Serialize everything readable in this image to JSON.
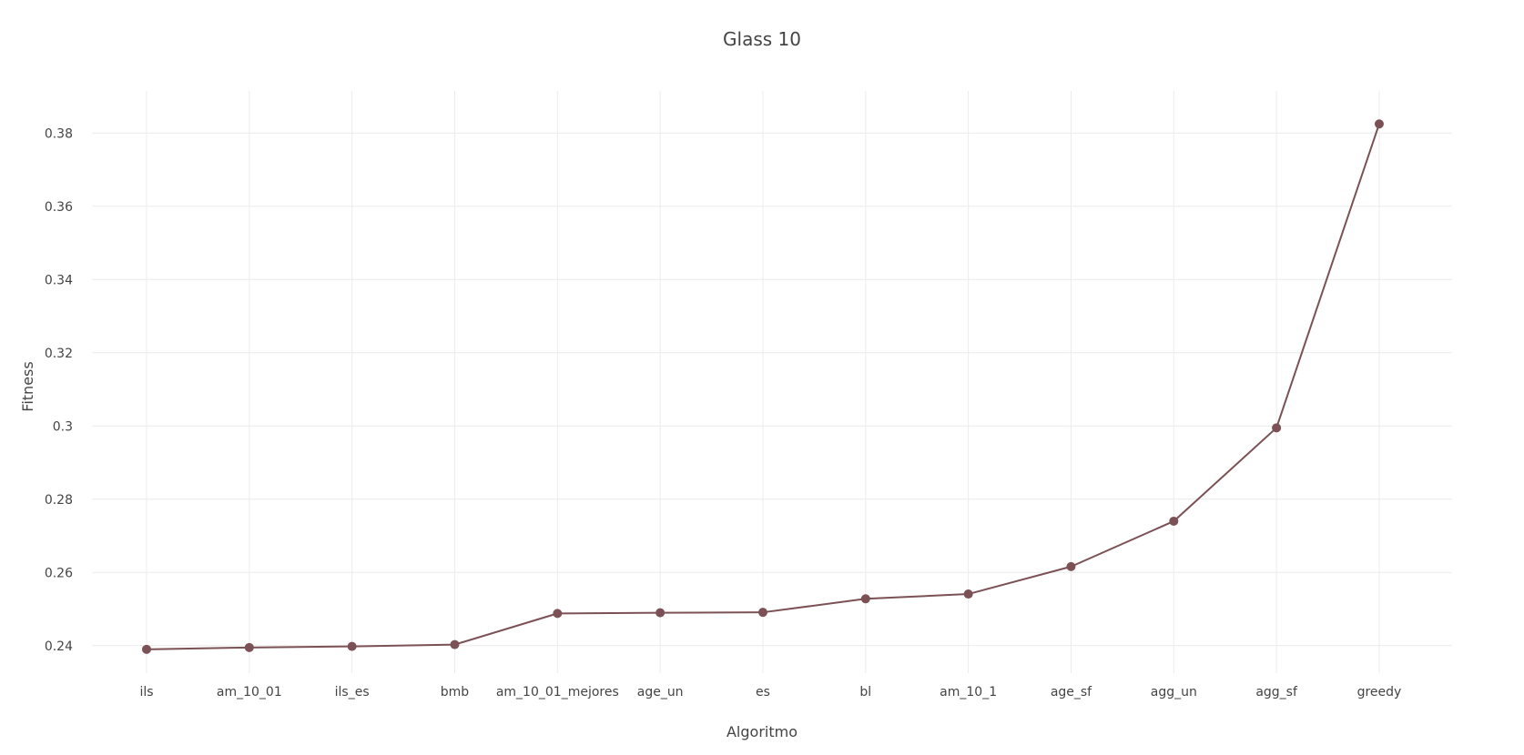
{
  "chart_data": {
    "type": "line",
    "title": "Glass 10",
    "xlabel": "Algoritmo",
    "ylabel": "Fitness",
    "categories": [
      "ils",
      "am_10_01",
      "ils_es",
      "bmb",
      "am_10_01_mejores",
      "age_un",
      "es",
      "bl",
      "am_10_1",
      "age_sf",
      "agg_un",
      "agg_sf",
      "greedy"
    ],
    "series": [
      {
        "values": [
          0.239,
          0.2395,
          0.2398,
          0.2403,
          0.2488,
          0.249,
          0.2491,
          0.2528,
          0.2541,
          0.2616,
          0.274,
          0.2995,
          0.3825
        ]
      }
    ],
    "yticks": [
      0.24,
      0.26,
      0.28,
      0.3,
      0.32,
      0.34,
      0.36,
      0.38
    ],
    "ytick_labels": [
      "0.24",
      "0.26",
      "0.28",
      "0.3",
      "0.32",
      "0.34",
      "0.36",
      "0.38"
    ],
    "ylim": [
      0.2325,
      0.3915
    ],
    "grid": true,
    "color": "#7b5155"
  }
}
